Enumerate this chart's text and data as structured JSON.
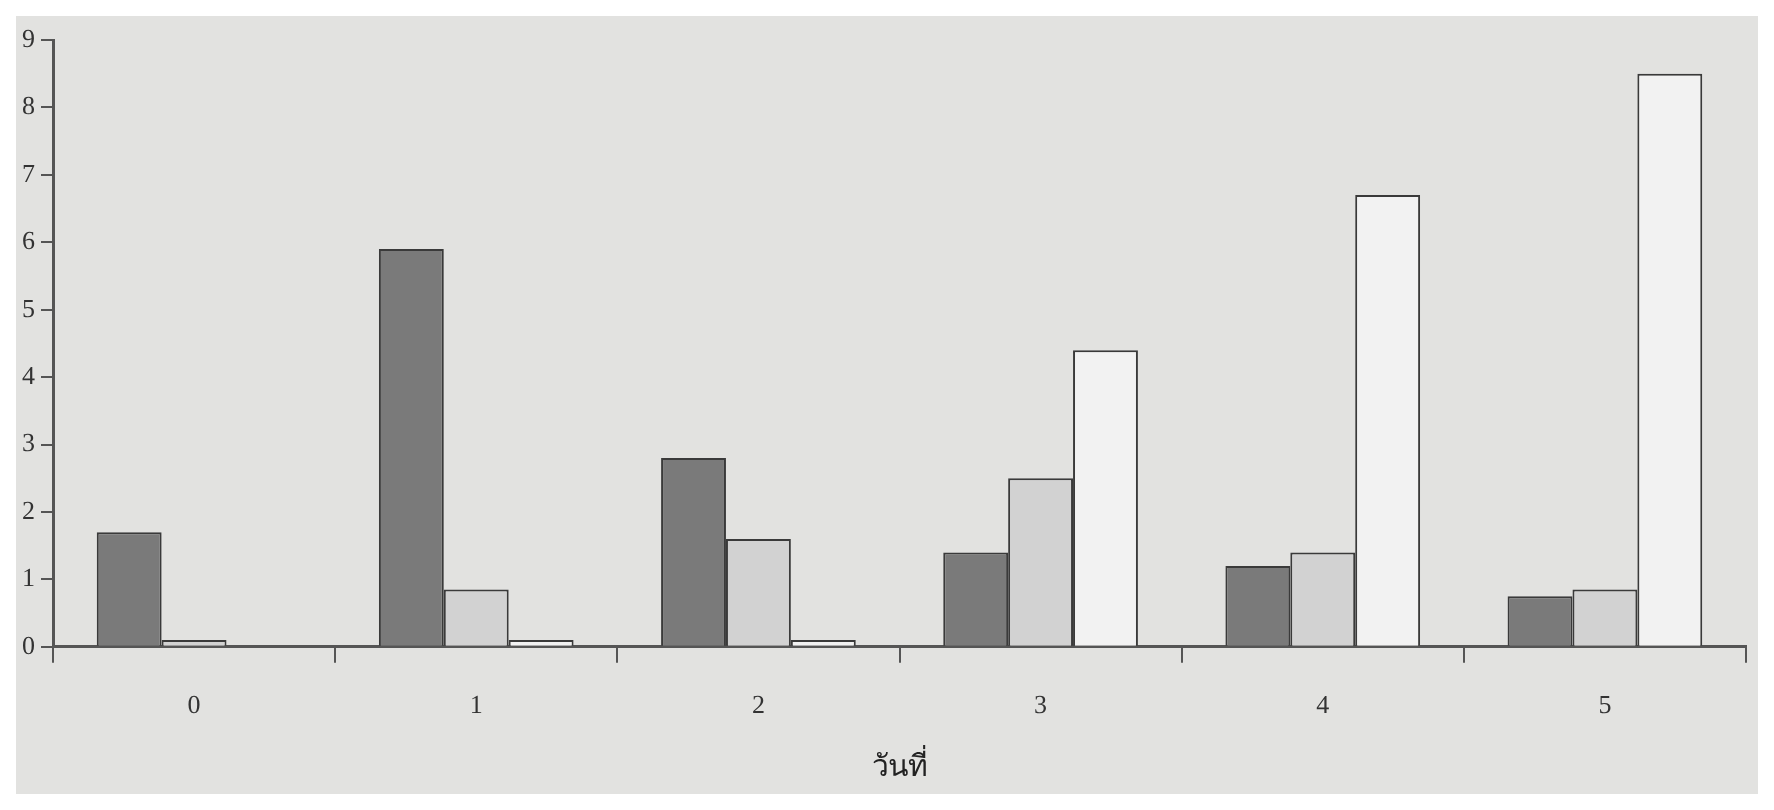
{
  "chart_data": {
    "type": "bar",
    "xlabel": "วันที่",
    "categories": [
      "0",
      "1",
      "2",
      "3",
      "4",
      "5"
    ],
    "series": [
      {
        "color": "#7a7a7a",
        "values": [
          1.7,
          5.9,
          2.8,
          1.4,
          1.2,
          0.75
        ]
      },
      {
        "color": "#d2d2d2",
        "values": [
          0.1,
          0.85,
          1.6,
          2.5,
          1.4,
          0.85
        ]
      },
      {
        "color": "#f2f2f2",
        "values": [
          null,
          0.1,
          0.1,
          4.4,
          6.7,
          8.5
        ]
      }
    ],
    "ylim": [
      0,
      9
    ],
    "yticks": [
      0,
      1,
      2,
      3,
      4,
      5,
      6,
      7,
      8,
      9
    ],
    "grid": false,
    "legend": false
  }
}
